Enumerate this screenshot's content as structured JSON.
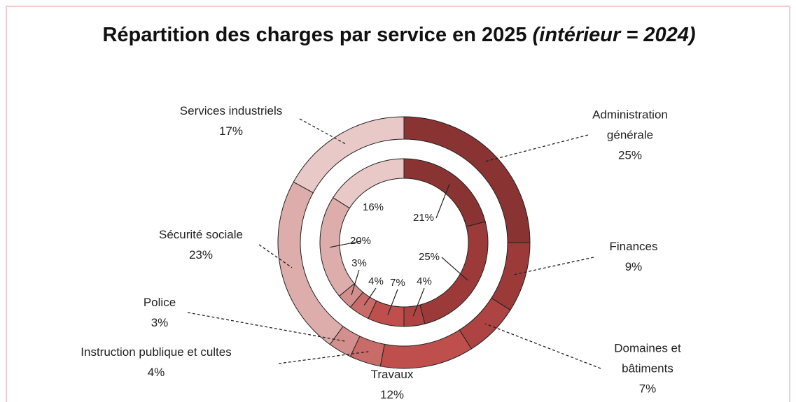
{
  "chart_data": {
    "type": "donut",
    "title": "Répartition des charges par service en 2025",
    "title_note": "(intérieur = 2024)",
    "categories": [
      "Administration générale",
      "Finances",
      "Domaines et bâtiments",
      "Travaux",
      "Instruction publique et cultes",
      "Police",
      "Sécurité sociale",
      "Services industriels"
    ],
    "colors": [
      "#8a3333",
      "#9c3a3a",
      "#ad4343",
      "#bf4f4c",
      "#c96b69",
      "#d38f8d",
      "#ddadac",
      "#e9c8c8"
    ],
    "series": [
      {
        "values": [
          25,
          9,
          7,
          12,
          4,
          3,
          23,
          17
        ],
        "value_labels": [
          "25%",
          "9%",
          "7%",
          "12%",
          "4%",
          "3%",
          "23%",
          "17%"
        ]
      },
      {
        "values": [
          21,
          25,
          4,
          7,
          4,
          3,
          20,
          16
        ],
        "value_labels": [
          "21%",
          "25%",
          "4%",
          "7%",
          "4%",
          "3%",
          "20%",
          "16%"
        ]
      }
    ]
  }
}
